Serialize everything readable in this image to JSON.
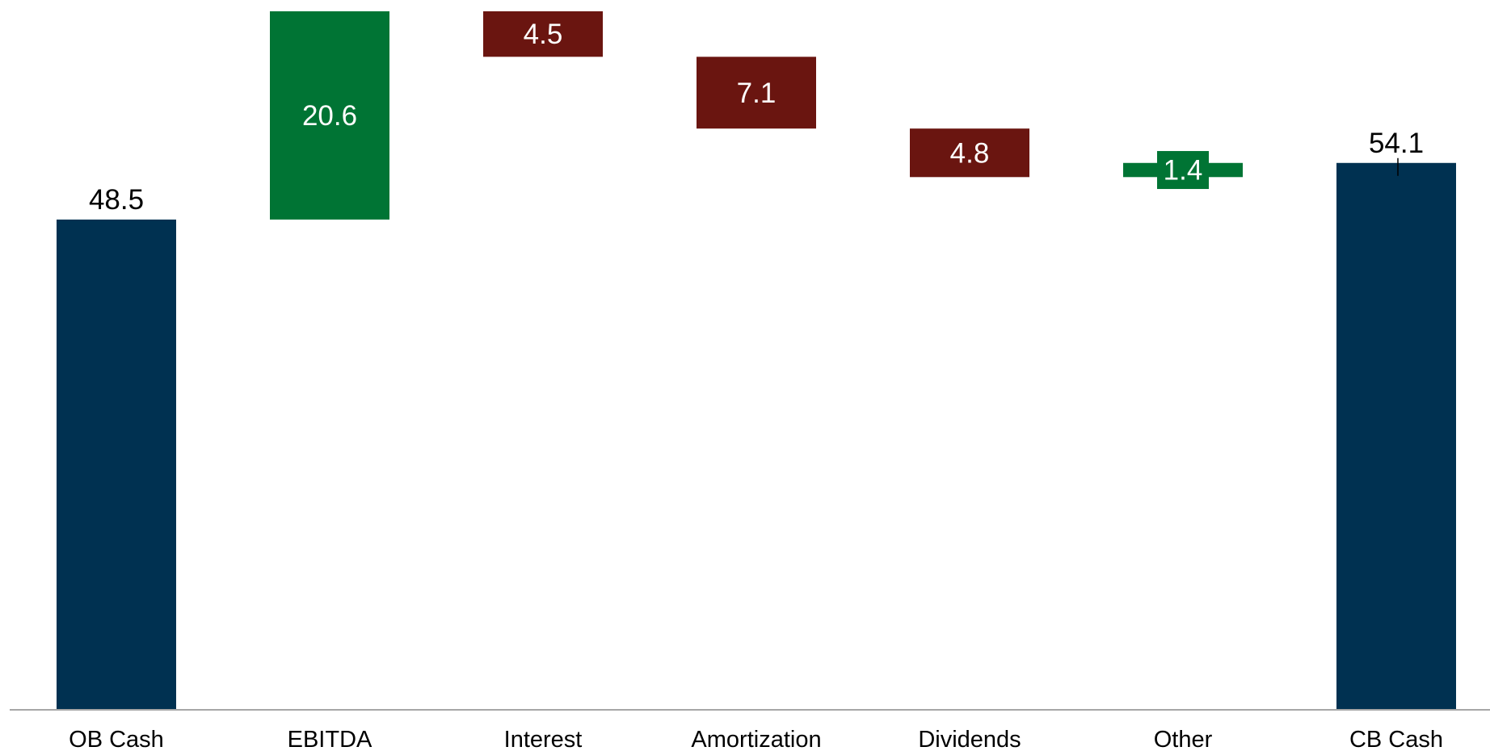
{
  "chart_data": {
    "type": "waterfall",
    "title": "",
    "xlabel": "",
    "ylabel": "",
    "categories": [
      "OB Cash",
      "EBITDA",
      "Interest",
      "Amortization",
      "Dividends",
      "Other",
      "CB Cash"
    ],
    "steps": [
      {
        "label": "OB Cash",
        "kind": "total",
        "value": 48.5,
        "display": "48.5"
      },
      {
        "label": "EBITDA",
        "kind": "increase",
        "value": 20.6,
        "display": "20.6"
      },
      {
        "label": "Interest",
        "kind": "decrease",
        "value": 4.5,
        "display": "4.5"
      },
      {
        "label": "Amortization",
        "kind": "decrease",
        "value": 7.1,
        "display": "7.1"
      },
      {
        "label": "Dividends",
        "kind": "decrease",
        "value": 4.8,
        "display": "4.8"
      },
      {
        "label": "Other",
        "kind": "increase",
        "value": 1.4,
        "display": "1.4"
      },
      {
        "label": "CB Cash",
        "kind": "total",
        "value": 54.1,
        "display": "54.1"
      }
    ],
    "ylim": [
      0,
      69.1
    ],
    "grid": false,
    "legend": "none",
    "colors": {
      "total": "#003151",
      "increase": "#007434",
      "decrease": "#6a1510",
      "axis": "#a6a6a6",
      "outside_label": "#000000",
      "inside_label": "#ffffff"
    }
  }
}
